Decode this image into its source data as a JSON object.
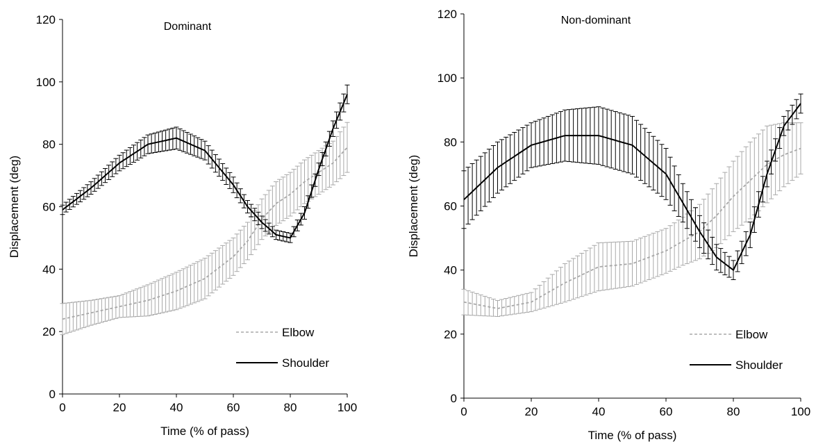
{
  "chart_data": [
    {
      "type": "line",
      "title": "Dominant",
      "xlabel": "Time (% of pass)",
      "ylabel": "Displacement (deg)",
      "xlim": [
        0,
        100
      ],
      "ylim": [
        0,
        120
      ],
      "xticks": [
        0,
        20,
        40,
        60,
        80,
        100
      ],
      "yticks": [
        0,
        20,
        40,
        60,
        80,
        100,
        120
      ],
      "grid": false,
      "legend": "bottom-right",
      "x": [
        0,
        10,
        20,
        30,
        40,
        50,
        60,
        65,
        70,
        75,
        80,
        85,
        90,
        95,
        100
      ],
      "series": [
        {
          "name": "Elbow",
          "color": "#a8a8a8",
          "style": "dashed",
          "values": [
            24,
            26,
            28,
            30,
            33,
            37,
            44,
            49,
            56,
            61,
            64,
            68,
            71,
            74,
            79
          ],
          "error": [
            5,
            4,
            3.5,
            5,
            6,
            6.5,
            6,
            6,
            6.5,
            7,
            7,
            7,
            7,
            7,
            8
          ]
        },
        {
          "name": "Shoulder",
          "color": "#000000",
          "style": "solid",
          "values": [
            59,
            66,
            74,
            80,
            82,
            78,
            67,
            60,
            55,
            51,
            50,
            58,
            72,
            85,
            96
          ],
          "error": [
            1.5,
            2,
            2.5,
            3,
            3.5,
            3,
            2.5,
            2,
            2,
            1.5,
            1.5,
            2,
            2,
            2.5,
            3
          ]
        }
      ]
    },
    {
      "type": "line",
      "title": "Non-dominant",
      "xlabel": "Time (% of pass)",
      "ylabel": "Displacement (deg)",
      "xlim": [
        0,
        100
      ],
      "ylim": [
        0,
        120
      ],
      "xticks": [
        0,
        20,
        40,
        60,
        80,
        100
      ],
      "yticks": [
        0,
        20,
        40,
        60,
        80,
        100,
        120
      ],
      "grid": false,
      "legend": "bottom-right",
      "x": [
        0,
        10,
        20,
        30,
        40,
        50,
        60,
        65,
        70,
        75,
        80,
        85,
        90,
        95,
        100
      ],
      "series": [
        {
          "name": "Elbow",
          "color": "#a8a8a8",
          "style": "dashed",
          "values": [
            30,
            28,
            30,
            36,
            41,
            42,
            46,
            49,
            52,
            57,
            63,
            68,
            73,
            76,
            78
          ],
          "error": [
            4,
            2.5,
            3,
            6,
            7.5,
            7,
            7,
            7.5,
            8.5,
            10,
            11,
            12,
            12,
            10,
            8
          ]
        },
        {
          "name": "Shoulder",
          "color": "#000000",
          "style": "solid",
          "values": [
            62,
            72,
            79,
            82,
            82,
            79,
            70,
            61,
            52,
            44,
            40,
            51,
            70,
            85,
            92
          ],
          "error": [
            9,
            8,
            7,
            8,
            9,
            9,
            8,
            6,
            5,
            4,
            3,
            4,
            4,
            3,
            3
          ]
        }
      ]
    }
  ]
}
